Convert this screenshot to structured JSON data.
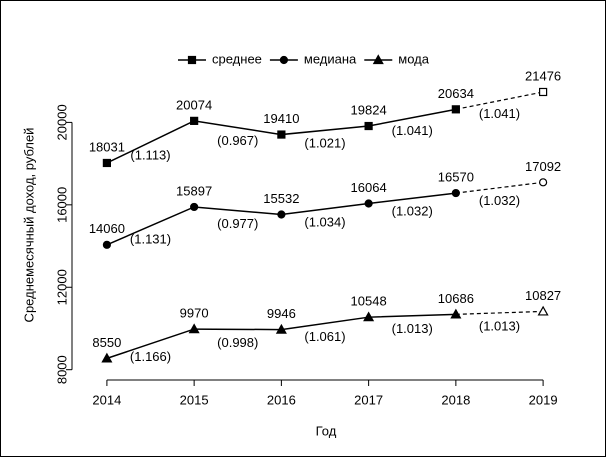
{
  "chart_data": {
    "type": "line",
    "x": [
      2014,
      2015,
      2016,
      2017,
      2018,
      2019
    ],
    "xlabel": "Год",
    "ylabel": "Среднемесячный доход, рублей",
    "xlim": [
      2013.6,
      2019.4
    ],
    "ylim": [
      7500,
      22300
    ],
    "xticks": [
      2014,
      2015,
      2016,
      2017,
      2018,
      2019
    ],
    "yticks": [
      8000,
      12000,
      16000,
      20000
    ],
    "forecast_last": true,
    "legend": "top",
    "series": [
      {
        "name": "среднее",
        "color": "#000000",
        "marker": "square",
        "values": [
          18031,
          20074,
          19410,
          19824,
          20634,
          21476
        ],
        "ratio_labels": [
          "(1.113)",
          "(0.967)",
          "(1.021)",
          "(1.041)",
          "(1.041)"
        ]
      },
      {
        "name": "медиана",
        "color": "#000000",
        "marker": "circle",
        "values": [
          14060,
          15897,
          15532,
          16064,
          16570,
          17092
        ],
        "ratio_labels": [
          "(1.131)",
          "(0.977)",
          "(1.034)",
          "(1.032)",
          "(1.032)"
        ]
      },
      {
        "name": "мода",
        "color": "#000000",
        "marker": "triangle",
        "values": [
          8550,
          9970,
          9946,
          10548,
          10686,
          10827
        ],
        "ratio_labels": [
          "(1.166)",
          "(0.998)",
          "(1.061)",
          "(1.013)",
          "(1.013)"
        ]
      }
    ]
  }
}
